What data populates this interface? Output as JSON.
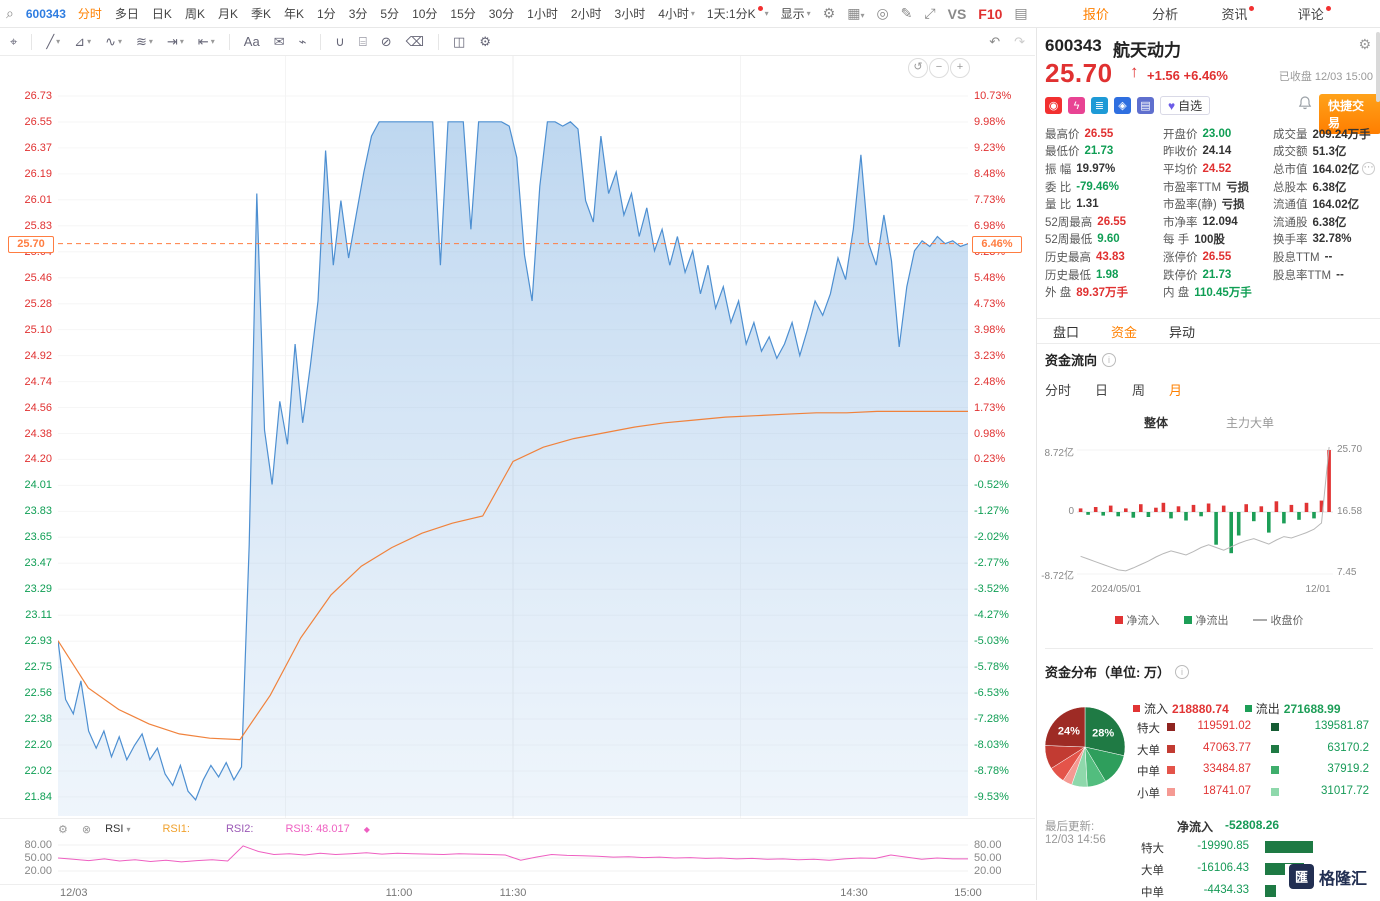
{
  "top_toolbar": {
    "symbol": "600343",
    "search_icon_glyph": "⌕",
    "periods": [
      {
        "label": "分时",
        "active": true
      },
      {
        "label": "多日"
      },
      {
        "label": "日K"
      },
      {
        "label": "周K"
      },
      {
        "label": "月K"
      },
      {
        "label": "季K"
      },
      {
        "label": "年K"
      },
      {
        "label": "1分"
      },
      {
        "label": "3分"
      },
      {
        "label": "5分"
      },
      {
        "label": "10分"
      },
      {
        "label": "15分"
      },
      {
        "label": "30分"
      },
      {
        "label": "1小时"
      },
      {
        "label": "2小时"
      },
      {
        "label": "3小时"
      },
      {
        "label": "4小时",
        "caret": true
      }
    ],
    "kline": {
      "label": "1天:1分K",
      "dot": true,
      "caret": true
    },
    "display": {
      "label": "显示",
      "caret": true
    },
    "icons": [
      {
        "name": "chart-settings-icon",
        "glyph": "⚙"
      },
      {
        "name": "layout-icon",
        "glyph": "▦",
        "caret": true
      },
      {
        "name": "screenshot-icon",
        "glyph": "◎"
      },
      {
        "name": "draw-mode-icon",
        "glyph": "✎"
      },
      {
        "name": "fullscreen-icon",
        "glyph": "⤢"
      }
    ],
    "vs_label": "VS",
    "f10_label": "F10",
    "report_icon_glyph": "▤",
    "right_tabs": [
      {
        "label": "报价",
        "active": true
      },
      {
        "label": "分析"
      },
      {
        "label": "资讯",
        "dot": true
      },
      {
        "label": "评论",
        "dot": true
      }
    ]
  },
  "draw_toolbar": {
    "tools": [
      {
        "name": "crosshair-tool-icon",
        "glyph": "⌖"
      },
      {
        "name": "trendline-tool-icon",
        "glyph": "╱",
        "caret": true
      },
      {
        "name": "gann-fib-tool-icon",
        "glyph": "⊿",
        "caret": true
      },
      {
        "name": "wave-tool-icon",
        "glyph": "∿",
        "caret": true
      },
      {
        "name": "pattern-tool-icon",
        "glyph": "≋",
        "caret": true
      },
      {
        "name": "forecast-tool-icon",
        "glyph": "⇥",
        "caret": true
      },
      {
        "name": "arrow-tool-icon",
        "glyph": "⇤",
        "caret": true
      },
      {
        "name": "text-tool-icon",
        "glyph": "Aa"
      },
      {
        "name": "note-tool-icon",
        "glyph": "✉"
      },
      {
        "name": "brush-tool-icon",
        "glyph": "⌁"
      },
      {
        "name": "magnet-tool-icon",
        "glyph": "∪"
      },
      {
        "name": "measure-tool-icon",
        "glyph": "⌸"
      },
      {
        "name": "hide-drawings-icon",
        "glyph": "⊘"
      },
      {
        "name": "remove-drawings-icon",
        "glyph": "⌫"
      },
      {
        "name": "sync-drawings-icon",
        "glyph": "◫"
      },
      {
        "name": "drawing-settings-icon",
        "glyph": "⚙"
      }
    ],
    "undo_glyph": "↶",
    "redo_glyph": "↷"
  },
  "price_chart": {
    "prev_close": 24.14,
    "price_axis": [
      "26.73",
      "26.55",
      "26.37",
      "26.19",
      "26.01",
      "25.83",
      "25.64",
      "25.46",
      "25.28",
      "25.10",
      "24.92",
      "24.74",
      "24.56",
      "24.38",
      "24.20",
      "24.01",
      "23.83",
      "23.65",
      "23.47",
      "23.29",
      "23.11",
      "22.93",
      "22.75",
      "22.56",
      "22.38",
      "22.20",
      "22.02",
      "21.84"
    ],
    "pct_axis": [
      "10.73%",
      "9.98%",
      "9.23%",
      "8.48%",
      "7.73%",
      "6.98%",
      "6.23%",
      "5.48%",
      "4.73%",
      "3.98%",
      "3.23%",
      "2.48%",
      "1.73%",
      "0.98%",
      "0.23%",
      "-0.52%",
      "-1.27%",
      "-2.02%",
      "-2.77%",
      "-3.52%",
      "-4.27%",
      "-5.03%",
      "-5.78%",
      "-6.53%",
      "-7.28%",
      "-8.03%",
      "-8.78%",
      "-9.53%"
    ],
    "current_price_badge": "25.70",
    "current_pct_badge": "6.46%",
    "x_labels": [
      {
        "t": 0,
        "label": "12/03"
      },
      {
        "t": 90,
        "label": "11:00"
      },
      {
        "t": 120,
        "label": "11:30"
      },
      {
        "t": 210,
        "label": "14:30"
      },
      {
        "t": 240,
        "label": "15:00"
      }
    ],
    "zoom_controls": [
      {
        "name": "reset-zoom-icon",
        "glyph": "↺"
      },
      {
        "name": "zoom-out-icon",
        "glyph": "−"
      },
      {
        "name": "zoom-in-icon",
        "glyph": "+"
      }
    ],
    "rsi": {
      "settings_glyph": "⚙",
      "close_glyph": "⊗",
      "name": "RSI",
      "r1": "RSI1:",
      "r2": "RSI2:",
      "r3": "RSI3:",
      "r3_value": "48.017",
      "diamond": "◆"
    },
    "rsi_axis": [
      "80.00",
      "50.00",
      "20.00"
    ]
  },
  "chart_data": {
    "intraday": {
      "type": "line",
      "symbol": "600343",
      "prev_close": 24.14,
      "ylim": [
        21.84,
        26.73
      ],
      "session_minutes": 240,
      "x_labels": [
        "12/03",
        "11:00",
        "11:30",
        "14:30",
        "15:00"
      ],
      "price": [
        22.93,
        22.52,
        22.42,
        22.65,
        22.3,
        22.18,
        22.3,
        22.12,
        22.26,
        22.1,
        22.2,
        22.28,
        22.1,
        22.18,
        22.0,
        21.92,
        22.06,
        21.88,
        21.82,
        21.96,
        22.06,
        21.98,
        22.08,
        21.96,
        22.05,
        23.6,
        26.05,
        24.4,
        24.02,
        24.6,
        24.3,
        25.0,
        24.45,
        24.85,
        25.3,
        26.35,
        25.55,
        26.0,
        25.6,
        25.9,
        26.2,
        26.45,
        26.55,
        26.55,
        26.55,
        26.55,
        26.55,
        26.55,
        26.55,
        26.55,
        25.55,
        26.55,
        26.55,
        26.55,
        25.8,
        26.55,
        26.55,
        26.55,
        26.55,
        26.52,
        26.3,
        25.62,
        25.3,
        26.1,
        26.55,
        26.55,
        26.52,
        26.55,
        26.5,
        26.0,
        25.85,
        26.45,
        26.05,
        26.2,
        25.9,
        26.05,
        25.75,
        25.95,
        25.65,
        25.8,
        25.55,
        25.75,
        25.5,
        25.65,
        25.35,
        25.55,
        25.25,
        25.4,
        25.15,
        25.3,
        25.0,
        25.15,
        24.95,
        25.05,
        24.9,
        25.0,
        25.15,
        24.92,
        25.1,
        25.3,
        25.2,
        25.35,
        25.6,
        25.45,
        25.8,
        26.32,
        25.7,
        25.55,
        25.9,
        25.58,
        24.98,
        25.4,
        25.65,
        25.72,
        25.68,
        25.75,
        25.7,
        25.72,
        25.68,
        25.7
      ],
      "avg_price": [
        22.93,
        22.6,
        22.45,
        22.35,
        22.28,
        22.25,
        22.24,
        22.55,
        22.95,
        23.25,
        23.45,
        23.58,
        23.68,
        23.75,
        23.8,
        24.18,
        24.28,
        24.34,
        24.38,
        24.42,
        24.45,
        24.47,
        24.49,
        24.5,
        24.51,
        24.52,
        24.52,
        24.53,
        24.53,
        24.53,
        24.53
      ],
      "rsi": [
        50,
        47,
        44,
        48,
        43,
        46,
        42,
        45,
        41,
        44,
        46,
        43,
        78,
        65,
        58,
        60,
        57,
        61,
        58,
        60,
        62,
        59,
        61,
        60,
        59,
        58,
        60,
        59,
        58,
        57,
        45,
        52,
        58,
        56,
        55,
        54,
        52,
        53,
        51,
        52,
        50,
        51,
        49,
        50,
        48,
        49,
        47,
        48,
        46,
        47,
        45,
        48,
        50,
        49,
        57,
        52,
        47,
        50,
        48,
        48
      ]
    },
    "fund_flow_monthly": {
      "type": "bar",
      "bar_unit": "亿",
      "bar_ylim": [
        -8.72,
        8.72
      ],
      "line_ylim": [
        7.45,
        25.7
      ],
      "x_range": [
        "2024/05/01",
        "12/01"
      ],
      "bars_yi": [
        0.5,
        -0.4,
        0.7,
        -0.5,
        0.9,
        -0.6,
        0.5,
        -0.8,
        1.1,
        -0.7,
        0.6,
        1.3,
        -0.9,
        0.8,
        -1.2,
        1.0,
        -0.6,
        1.2,
        -4.6,
        0.9,
        -5.8,
        -3.3,
        1.1,
        -1.3,
        0.8,
        -2.9,
        1.5,
        -1.6,
        1.0,
        -1.1,
        1.3,
        -0.9,
        1.6,
        8.72
      ],
      "close_line": [
        9.6,
        9.2,
        8.8,
        8.4,
        8.0,
        7.6,
        7.45,
        7.9,
        8.4,
        8.9,
        9.5,
        10.0,
        10.4,
        10.1,
        9.8,
        10.3,
        10.9,
        11.3,
        10.9,
        10.5,
        11.0,
        11.5,
        11.9,
        12.2,
        11.8,
        11.4,
        12.0,
        12.5,
        12.3,
        12.7,
        13.1,
        13.6,
        14.5,
        25.7
      ]
    },
    "fund_distribution_pie": {
      "type": "pie",
      "unit": "万",
      "slices": [
        {
          "name": "特大流出",
          "pct": 28.5,
          "color": "#1f7a44",
          "label": "28%"
        },
        {
          "name": "大单流出",
          "pct": 12.9,
          "color": "#2e9e5c"
        },
        {
          "name": "中单流出",
          "pct": 7.7,
          "color": "#52bd7e"
        },
        {
          "name": "小单流出",
          "pct": 6.3,
          "color": "#8ed8ab"
        },
        {
          "name": "小单流入",
          "pct": 3.8,
          "color": "#f59a93"
        },
        {
          "name": "中单流入",
          "pct": 6.8,
          "color": "#e4544a"
        },
        {
          "name": "大单流入",
          "pct": 9.6,
          "color": "#c23b32"
        },
        {
          "name": "特大流入",
          "pct": 24.4,
          "color": "#9e2b25",
          "label": "24%"
        }
      ]
    }
  },
  "panel": {
    "header": {
      "code": "600343",
      "name": "航天动力",
      "price": "25.70",
      "arrow": "↑",
      "change": "+1.56 +6.46%",
      "status": "已收盘 12/03 15:00",
      "watch_heart": "♥",
      "watch_label": "自选",
      "trade_label": "快捷交易"
    },
    "quick_icons": [
      {
        "name": "hot-tag-icon",
        "bg": "#f23030",
        "glyph": "◉"
      },
      {
        "name": "flash-news-icon",
        "bg": "#e84393",
        "glyph": "ϟ"
      },
      {
        "name": "level2-icon",
        "bg": "#1e9ad6",
        "glyph": "≣"
      },
      {
        "name": "label-tag-icon",
        "bg": "#2f6fe0",
        "glyph": "◈"
      },
      {
        "name": "report-doc-icon",
        "bg": "#5f6fce",
        "glyph": "▤"
      }
    ],
    "stats": [
      [
        {
          "l": "最高价",
          "v": "26.55",
          "c": "r"
        },
        {
          "l": "开盘价",
          "v": "23.00",
          "c": "g"
        },
        {
          "l": "成交量",
          "v": "209.24万手",
          "c": "d"
        }
      ],
      [
        {
          "l": "最低价",
          "v": "21.73",
          "c": "g"
        },
        {
          "l": "昨收价",
          "v": "24.14",
          "c": "d"
        },
        {
          "l": "成交额",
          "v": "51.3亿",
          "c": "d"
        }
      ],
      [
        {
          "l": "振 幅",
          "v": "19.97%",
          "c": "d"
        },
        {
          "l": "平均价",
          "v": "24.52",
          "c": "r"
        },
        {
          "l": "总市值",
          "v": "164.02亿",
          "c": "d",
          "more": true
        }
      ],
      [
        {
          "l": "委 比",
          "v": "-79.46%",
          "c": "g"
        },
        {
          "l": "市盈率TTM",
          "v": "亏损",
          "c": "d"
        },
        {
          "l": "总股本",
          "v": "6.38亿",
          "c": "d"
        }
      ],
      [
        {
          "l": "量 比",
          "v": "1.31",
          "c": "d"
        },
        {
          "l": "市盈率(静)",
          "v": "亏损",
          "c": "d"
        },
        {
          "l": "流通值",
          "v": "164.02亿",
          "c": "d"
        }
      ],
      [
        {
          "l": "52周最高",
          "v": "26.55",
          "c": "r"
        },
        {
          "l": "市净率",
          "v": "12.094",
          "c": "d"
        },
        {
          "l": "流通股",
          "v": "6.38亿",
          "c": "d"
        }
      ],
      [
        {
          "l": "52周最低",
          "v": "9.60",
          "c": "g"
        },
        {
          "l": "每 手",
          "v": "100股",
          "c": "d"
        },
        {
          "l": "换手率",
          "v": "32.78%",
          "c": "d"
        }
      ],
      [
        {
          "l": "历史最高",
          "v": "43.83",
          "c": "r"
        },
        {
          "l": "涨停价",
          "v": "26.55",
          "c": "r"
        },
        {
          "l": "股息TTM",
          "v": "--",
          "c": "d"
        }
      ],
      [
        {
          "l": "历史最低",
          "v": "1.98",
          "c": "g"
        },
        {
          "l": "跌停价",
          "v": "21.73",
          "c": "g"
        },
        {
          "l": "股息率TTM",
          "v": "--",
          "c": "d"
        }
      ],
      [
        {
          "l": "外 盘",
          "v": "89.37万手",
          "c": "r"
        },
        {
          "l": "内 盘",
          "v": "110.45万手",
          "c": "g"
        },
        null
      ]
    ],
    "section_tabs": [
      {
        "label": "盘口"
      },
      {
        "label": "资金",
        "active": true
      },
      {
        "label": "异动"
      }
    ],
    "flow": {
      "title": "资金流向",
      "periods": [
        {
          "label": "分时"
        },
        {
          "label": "日"
        },
        {
          "label": "周"
        },
        {
          "label": "月",
          "active": true
        }
      ],
      "modes": [
        {
          "label": "整体",
          "active": true
        },
        {
          "label": "主力大单"
        }
      ],
      "y_left": [
        "8.72亿",
        "0",
        "-8.72亿"
      ],
      "y_right": [
        "25.70",
        "16.58",
        "7.45"
      ],
      "x_labels": [
        "2024/05/01",
        "12/01"
      ],
      "legend": [
        {
          "label": "净流入",
          "color": "#e13434",
          "type": "sq"
        },
        {
          "label": "净流出",
          "color": "#1d9e57",
          "type": "sq"
        },
        {
          "label": "收盘价",
          "color": "#aaaaaa",
          "type": "line"
        }
      ]
    },
    "dist": {
      "title": "资金分布（单位: 万）",
      "in_label": "流入",
      "in_total": "218880.74",
      "out_label": "流出",
      "out_total": "271688.99",
      "header_in_color": "#e13434",
      "header_out_color": "#1d9e57",
      "in_colors": [
        "#8f2420",
        "#c23b32",
        "#e4544a",
        "#f59a93"
      ],
      "out_colors": [
        "#155c33",
        "#1f7a44",
        "#3fae6c",
        "#8ed8ab"
      ],
      "rows": [
        {
          "label": "特大",
          "in": "119591.02",
          "out": "139581.87"
        },
        {
          "label": "大单",
          "in": "47063.77",
          "out": "63170.2"
        },
        {
          "label": "中单",
          "in": "33484.87",
          "out": "37919.2"
        },
        {
          "label": "小单",
          "in": "18741.07",
          "out": "31017.72"
        }
      ]
    },
    "net": {
      "updated_label": "最后更新:",
      "updated": "12/03 14:56",
      "net_label": "净流入",
      "net_value": "-52808.26",
      "rows": [
        {
          "label": "特大",
          "value": "-19990.85"
        },
        {
          "label": "大单",
          "value": "-16106.43"
        },
        {
          "label": "中单",
          "value": "-4434.33"
        }
      ]
    },
    "logo": {
      "mark": "匯",
      "text": "格隆汇"
    }
  }
}
